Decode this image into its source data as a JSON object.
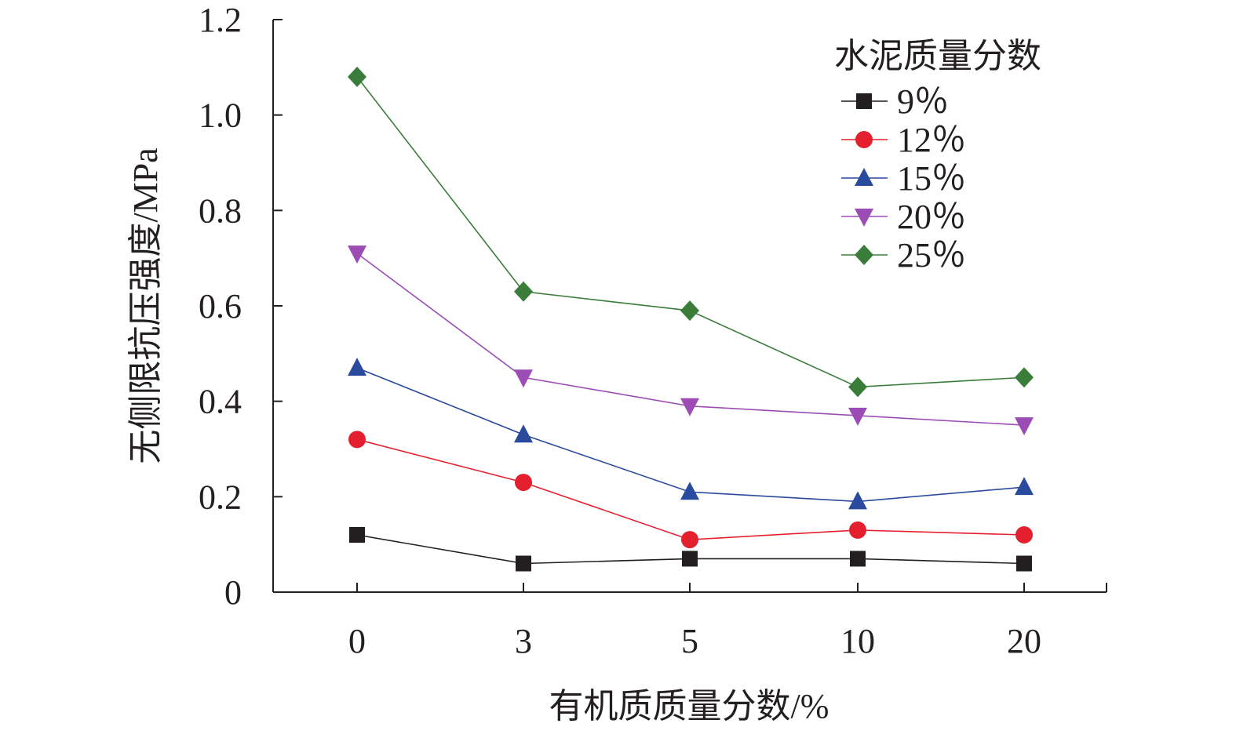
{
  "chart_data": {
    "type": "line",
    "categories": [
      "0",
      "3",
      "5",
      "10",
      "20"
    ],
    "xlabel": "有机质质量分数/%",
    "ylabel": "无侧限抗压强度/MPa",
    "ylim": [
      0,
      1.2
    ],
    "yticks": [
      "0",
      "0.2",
      "0.4",
      "0.6",
      "0.8",
      "1.0",
      "1.2"
    ],
    "ytick_values": [
      0,
      0.2,
      0.4,
      0.6,
      0.8,
      1.0,
      1.2
    ],
    "grid": false,
    "legend": {
      "title": "水泥质量分数",
      "position": "top-right"
    },
    "series": [
      {
        "name": "9％",
        "marker": "square",
        "color": "#231f20",
        "values": [
          0.12,
          0.06,
          0.07,
          0.07,
          0.06
        ]
      },
      {
        "name": "12％",
        "marker": "circle",
        "color": "#e5202e",
        "values": [
          0.32,
          0.23,
          0.11,
          0.13,
          0.12
        ]
      },
      {
        "name": "15％",
        "marker": "triangle-up",
        "color": "#2a4a9e",
        "values": [
          0.47,
          0.33,
          0.21,
          0.19,
          0.22
        ]
      },
      {
        "name": "20％",
        "marker": "triangle-down",
        "color": "#9b4db5",
        "values": [
          0.71,
          0.45,
          0.39,
          0.37,
          0.35
        ]
      },
      {
        "name": "25％",
        "marker": "diamond",
        "color": "#3a7d3a",
        "values": [
          1.08,
          0.63,
          0.59,
          0.43,
          0.45
        ]
      }
    ]
  }
}
